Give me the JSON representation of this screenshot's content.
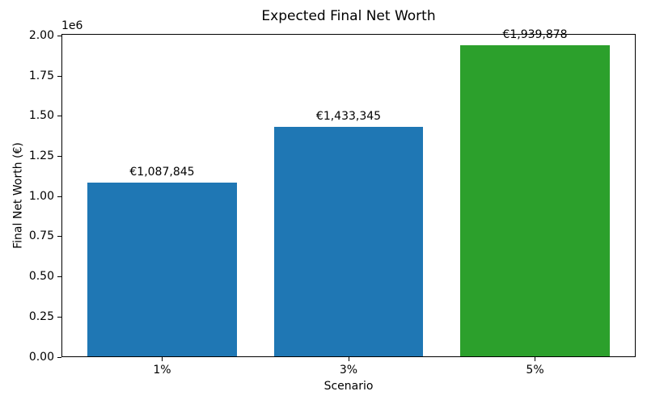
{
  "chart_data": {
    "type": "bar",
    "title": "Expected Final Net Worth",
    "xlabel": "Scenario",
    "ylabel": "Final Net Worth (€)",
    "categories": [
      "1%",
      "3%",
      "5%"
    ],
    "values": [
      1087845,
      1433345,
      1939878
    ],
    "bar_labels": [
      "€1,087,845",
      "€1,433,345",
      "€1,939,878"
    ],
    "bar_colors": [
      "#1f77b4",
      "#1f77b4",
      "#2ca02c"
    ],
    "bar_width": 0.8,
    "xlim": [
      -0.54,
      2.54
    ],
    "ylim": [
      0,
      2012600
    ],
    "y_offset_label": "1e6",
    "y_ticks": [
      {
        "value": 0,
        "label": "0.00"
      },
      {
        "value": 250000,
        "label": "0.25"
      },
      {
        "value": 500000,
        "label": "0.50"
      },
      {
        "value": 750000,
        "label": "0.75"
      },
      {
        "value": 1000000,
        "label": "1.00"
      },
      {
        "value": 1250000,
        "label": "1.25"
      },
      {
        "value": 1500000,
        "label": "1.50"
      },
      {
        "value": 1750000,
        "label": "1.75"
      },
      {
        "value": 2000000,
        "label": "2.00"
      }
    ],
    "grid": false,
    "legend_position": "none",
    "background_color": "#ffffff",
    "text_color": "#000000"
  }
}
